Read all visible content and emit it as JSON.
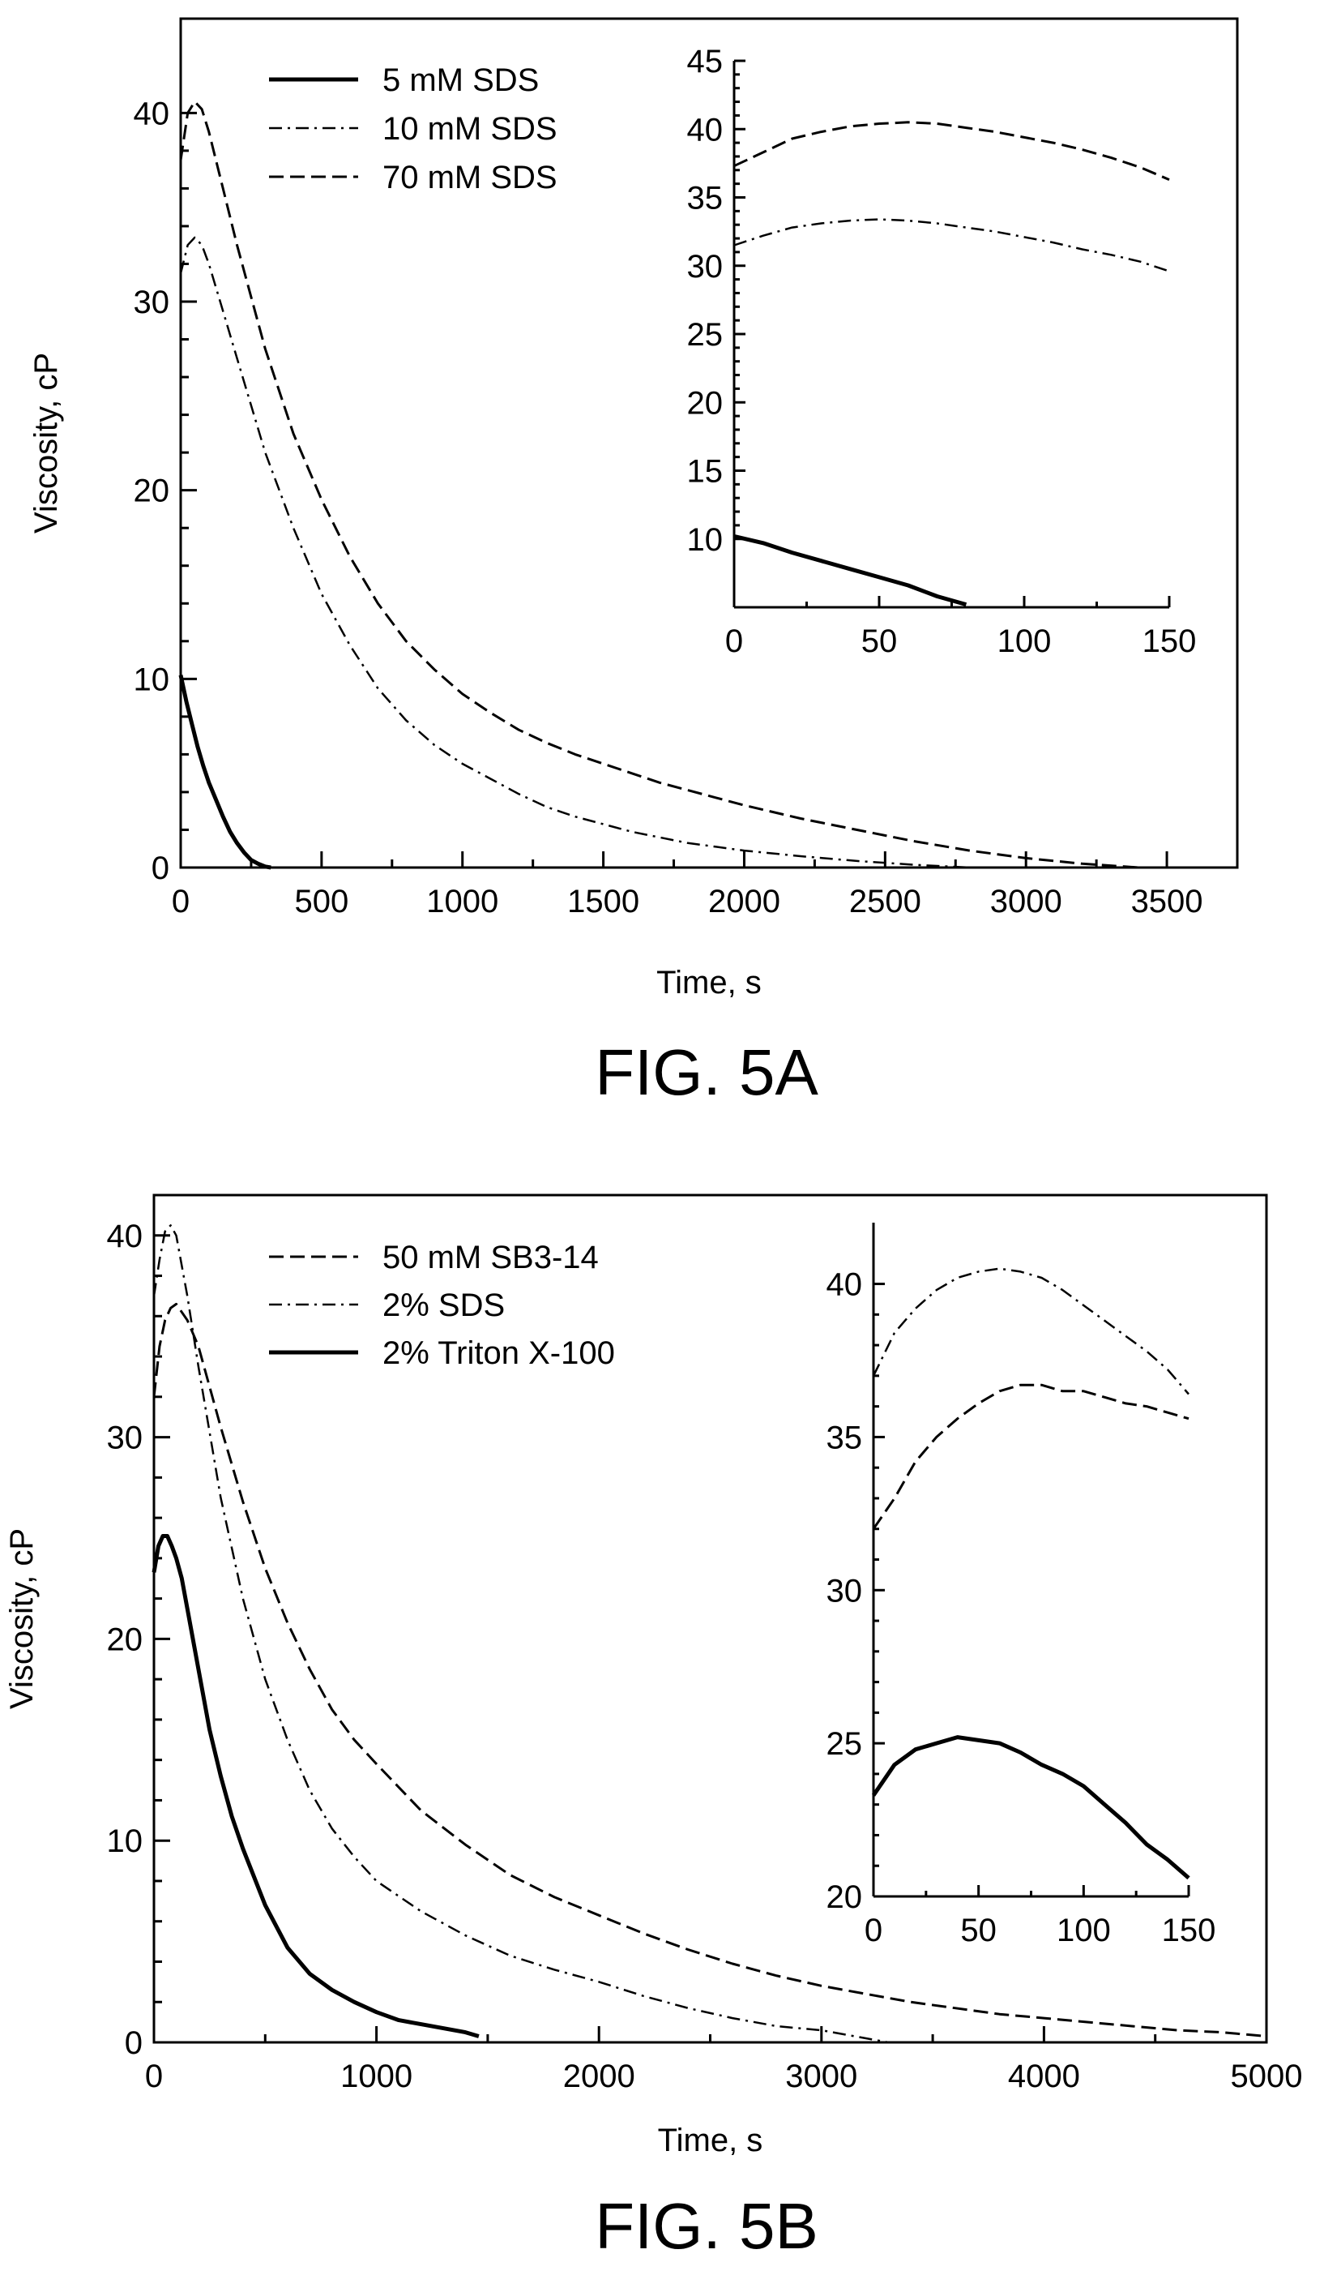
{
  "chart_data": [
    {
      "type": "line",
      "caption": "FIG. 5A",
      "xlabel": "Time, s",
      "ylabel": "Viscosity, cP",
      "xlim": [
        0,
        3750
      ],
      "ylim": [
        0,
        45
      ],
      "xticks": [
        0,
        500,
        1000,
        1500,
        2000,
        2500,
        3000,
        3500
      ],
      "yticks": [
        0,
        10,
        20,
        30,
        40
      ],
      "legend_position": "top-left",
      "series": [
        {
          "name": "5 mM SDS",
          "style": "solid",
          "width": 5,
          "x": [
            0,
            20,
            40,
            60,
            80,
            100,
            125,
            150,
            175,
            200,
            225,
            250,
            275,
            300,
            320
          ],
          "y": [
            10.2,
            8.8,
            7.6,
            6.4,
            5.4,
            4.5,
            3.6,
            2.7,
            1.9,
            1.3,
            0.8,
            0.4,
            0.2,
            0.05,
            0
          ]
        },
        {
          "name": "10 mM SDS",
          "style": "dashdot",
          "width": 2.5,
          "x": [
            0,
            25,
            50,
            75,
            100,
            150,
            200,
            300,
            400,
            500,
            600,
            700,
            800,
            900,
            1000,
            1100,
            1200,
            1300,
            1400,
            1500,
            1600,
            1700,
            1800,
            1900,
            2000,
            2200,
            2400,
            2600,
            2800
          ],
          "y": [
            31.5,
            33.0,
            33.4,
            33.0,
            32.0,
            29.5,
            27.0,
            22.0,
            18.0,
            14.5,
            11.8,
            9.5,
            7.8,
            6.5,
            5.5,
            4.7,
            3.9,
            3.2,
            2.7,
            2.3,
            1.9,
            1.6,
            1.3,
            1.1,
            0.9,
            0.6,
            0.35,
            0.15,
            0
          ]
        },
        {
          "name": "70 mM SDS",
          "style": "dashed",
          "width": 3,
          "x": [
            0,
            25,
            50,
            75,
            100,
            150,
            200,
            300,
            400,
            500,
            600,
            700,
            800,
            900,
            1000,
            1100,
            1200,
            1300,
            1400,
            1500,
            1600,
            1700,
            1800,
            1900,
            2000,
            2200,
            2400,
            2600,
            2800,
            3000,
            3200,
            3400
          ],
          "y": [
            37.5,
            40.0,
            40.6,
            40.2,
            39.0,
            36.0,
            33.0,
            27.5,
            23.0,
            19.5,
            16.5,
            14.0,
            12.0,
            10.5,
            9.2,
            8.2,
            7.3,
            6.6,
            6.0,
            5.5,
            5.0,
            4.5,
            4.1,
            3.7,
            3.3,
            2.6,
            2.0,
            1.4,
            0.9,
            0.5,
            0.2,
            0
          ]
        }
      ],
      "inset": {
        "xlim": [
          0,
          150
        ],
        "ylim": [
          5,
          45
        ],
        "xticks": [
          0,
          50,
          100,
          150
        ],
        "yticks": [
          10,
          15,
          20,
          25,
          30,
          35,
          40,
          45
        ],
        "series": [
          {
            "name": "5 mM SDS",
            "style": "solid",
            "width": 5,
            "x": [
              0,
              10,
              20,
              30,
              40,
              50,
              60,
              70,
              80
            ],
            "y": [
              10.2,
              9.7,
              9.0,
              8.4,
              7.8,
              7.2,
              6.6,
              5.8,
              5.2
            ]
          },
          {
            "name": "10 mM SDS",
            "style": "dashdot",
            "width": 2.5,
            "x": [
              0,
              10,
              20,
              30,
              40,
              50,
              60,
              70,
              80,
              90,
              100,
              110,
              120,
              130,
              140,
              150
            ],
            "y": [
              31.5,
              32.2,
              32.8,
              33.1,
              33.3,
              33.4,
              33.3,
              33.1,
              32.8,
              32.5,
              32.1,
              31.7,
              31.2,
              30.8,
              30.3,
              29.6
            ]
          },
          {
            "name": "70 mM SDS",
            "style": "dashed",
            "width": 3,
            "x": [
              0,
              10,
              20,
              30,
              40,
              50,
              60,
              70,
              80,
              90,
              100,
              110,
              120,
              130,
              140,
              150
            ],
            "y": [
              37.3,
              38.3,
              39.3,
              39.8,
              40.2,
              40.4,
              40.5,
              40.4,
              40.1,
              39.8,
              39.4,
              39.0,
              38.5,
              37.9,
              37.2,
              36.3
            ]
          }
        ]
      }
    },
    {
      "type": "line",
      "caption": "FIG. 5B",
      "xlabel": "Time, s",
      "ylabel": "Viscosity, cP",
      "xlim": [
        0,
        5000
      ],
      "ylim": [
        0,
        42
      ],
      "xticks": [
        0,
        1000,
        2000,
        3000,
        4000,
        5000
      ],
      "yticks": [
        0,
        10,
        20,
        30,
        40
      ],
      "legend_position": "top-left",
      "series": [
        {
          "name": "50 mM SB3-14",
          "style": "dashed",
          "width": 3,
          "x": [
            0,
            25,
            50,
            75,
            100,
            150,
            200,
            300,
            400,
            500,
            600,
            700,
            800,
            900,
            1000,
            1200,
            1400,
            1600,
            1800,
            2000,
            2200,
            2400,
            2600,
            2800,
            3000,
            3200,
            3400,
            3600,
            3800,
            4000,
            4200,
            4400,
            4600,
            4800,
            5000
          ],
          "y": [
            32.0,
            34.5,
            35.8,
            36.4,
            36.6,
            35.8,
            34.5,
            30.5,
            26.8,
            23.5,
            20.8,
            18.5,
            16.5,
            15.0,
            13.8,
            11.5,
            9.8,
            8.3,
            7.2,
            6.3,
            5.4,
            4.6,
            3.9,
            3.3,
            2.8,
            2.4,
            2.0,
            1.7,
            1.4,
            1.2,
            1.0,
            0.8,
            0.6,
            0.5,
            0.3
          ]
        },
        {
          "name": "2% SDS",
          "style": "dashdot",
          "width": 2.5,
          "x": [
            0,
            25,
            50,
            75,
            100,
            150,
            200,
            300,
            400,
            500,
            600,
            700,
            800,
            900,
            1000,
            1200,
            1400,
            1600,
            1800,
            2000,
            2200,
            2400,
            2600,
            2800,
            3000,
            3200,
            3300
          ],
          "y": [
            37.0,
            38.8,
            40.2,
            40.5,
            40.0,
            37.0,
            33.5,
            27.0,
            22.0,
            18.0,
            15.0,
            12.5,
            10.6,
            9.2,
            8.0,
            6.5,
            5.3,
            4.3,
            3.6,
            3.0,
            2.3,
            1.7,
            1.2,
            0.8,
            0.6,
            0.2,
            0
          ]
        },
        {
          "name": "2% Triton X-100",
          "style": "solid",
          "width": 5,
          "x": [
            0,
            20,
            40,
            60,
            80,
            100,
            125,
            150,
            200,
            250,
            300,
            350,
            400,
            500,
            600,
            700,
            800,
            900,
            1000,
            1100,
            1200,
            1300,
            1400,
            1460
          ],
          "y": [
            23.3,
            24.6,
            25.1,
            25.1,
            24.6,
            24.0,
            23.0,
            21.5,
            18.5,
            15.5,
            13.2,
            11.2,
            9.6,
            6.8,
            4.7,
            3.4,
            2.6,
            2.0,
            1.5,
            1.1,
            0.9,
            0.7,
            0.5,
            0.3
          ]
        }
      ],
      "inset": {
        "xlim": [
          0,
          150
        ],
        "ylim": [
          20,
          42
        ],
        "xticks": [
          0,
          50,
          100,
          150
        ],
        "yticks": [
          20,
          25,
          30,
          35,
          40
        ],
        "series": [
          {
            "name": "50 mM SB3-14",
            "style": "dashed",
            "width": 3,
            "x": [
              0,
              10,
              20,
              30,
              40,
              50,
              60,
              70,
              80,
              90,
              100,
              110,
              120,
              130,
              140,
              150
            ],
            "y": [
              32.0,
              33.0,
              34.2,
              35.0,
              35.6,
              36.1,
              36.5,
              36.7,
              36.7,
              36.5,
              36.5,
              36.3,
              36.1,
              36.0,
              35.8,
              35.6
            ]
          },
          {
            "name": "2% SDS",
            "style": "dashdot",
            "width": 2.5,
            "x": [
              0,
              10,
              20,
              30,
              40,
              50,
              60,
              70,
              80,
              90,
              100,
              110,
              120,
              130,
              140,
              150
            ],
            "y": [
              37.0,
              38.4,
              39.2,
              39.8,
              40.2,
              40.4,
              40.5,
              40.4,
              40.2,
              39.8,
              39.3,
              38.8,
              38.3,
              37.8,
              37.2,
              36.4
            ]
          },
          {
            "name": "2% Triton X-100",
            "style": "solid",
            "width": 5,
            "x": [
              0,
              10,
              20,
              30,
              40,
              50,
              60,
              70,
              80,
              90,
              100,
              110,
              120,
              130,
              140,
              150
            ],
            "y": [
              23.3,
              24.3,
              24.8,
              25.0,
              25.2,
              25.1,
              25.0,
              24.7,
              24.3,
              24.0,
              23.6,
              23.0,
              22.4,
              21.7,
              21.2,
              20.6
            ]
          }
        ]
      }
    }
  ]
}
